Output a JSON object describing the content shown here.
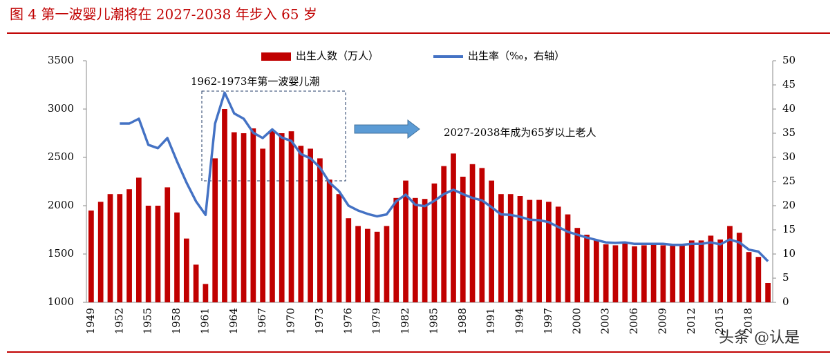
{
  "chart_data": {
    "type": "bar",
    "title": "图 4 第一波婴儿潮将在 2027-2038 年步入 65 岁",
    "annotations": [
      "1962-1973年第一波婴儿潮",
      "2027-2038年成为65岁以上老人"
    ],
    "watermark": "头条 @认是",
    "categories": [
      "1949",
      null,
      null,
      "1952",
      null,
      null,
      "1955",
      null,
      null,
      "1958",
      null,
      null,
      "1961",
      null,
      null,
      "1964",
      null,
      null,
      "1967",
      null,
      null,
      "1970",
      null,
      null,
      "1973",
      null,
      null,
      "1976",
      null,
      null,
      "1979",
      null,
      null,
      "1982",
      null,
      null,
      "1985",
      null,
      null,
      "1988",
      null,
      null,
      "1991",
      null,
      null,
      "1994",
      null,
      null,
      "1997",
      null,
      null,
      "2000",
      null,
      null,
      "2003",
      null,
      null,
      "2006",
      null,
      null,
      "2009",
      null,
      null,
      "2012",
      null,
      null,
      "2015",
      null,
      null,
      "2018",
      null,
      null
    ],
    "series": [
      {
        "name": "出生人数（万人）",
        "color": "#c00000",
        "values": [
          1950,
          2040,
          2120,
          2120,
          2170,
          2290,
          2000,
          2000,
          2190,
          1930,
          1660,
          1390,
          1190,
          2490,
          3000,
          2760,
          2750,
          2800,
          2590,
          2780,
          2750,
          2770,
          2620,
          2590,
          2490,
          2270,
          2120,
          1870,
          1790,
          1760,
          1730,
          1790,
          2080,
          2260,
          2080,
          2070,
          2230,
          2410,
          2540,
          2300,
          2430,
          2390,
          2260,
          2120,
          2120,
          2100,
          2060,
          2060,
          2040,
          1990,
          1910,
          1770,
          1700,
          1650,
          1600,
          1590,
          1620,
          1580,
          1590,
          1610,
          1590,
          1590,
          1600,
          1640,
          1640,
          1690,
          1650,
          1790,
          1720,
          1520,
          1470,
          1200
        ]
      },
      {
        "name": "出生率（‰，右轴）",
        "color": "#4472c4",
        "axis": "y2",
        "values": [
          null,
          null,
          null,
          37,
          37,
          38,
          32.6,
          31.9,
          34,
          29.2,
          24.8,
          20.9,
          18.1,
          37,
          43.4,
          39.1,
          38,
          35.1,
          34,
          35.8,
          34.1,
          33.4,
          30.7,
          29.8,
          27.9,
          24.8,
          23,
          20,
          19,
          18.3,
          17.8,
          18.2,
          20.9,
          22.3,
          20.2,
          19.9,
          21,
          22.4,
          23.3,
          22.4,
          21.6,
          21.1,
          19.7,
          18.2,
          18.1,
          17.7,
          17.1,
          17,
          16.6,
          15.6,
          14.6,
          14,
          13.4,
          12.9,
          12.4,
          12.3,
          12.4,
          12.1,
          12.1,
          12.1,
          12.1,
          11.9,
          11.9,
          12.1,
          12.1,
          12.4,
          12,
          13,
          12.4,
          10.9,
          10.5,
          8.5
        ]
      }
    ],
    "ylim": [
      1000,
      3500
    ],
    "yticks": [
      1000,
      1500,
      2000,
      2500,
      3000,
      3500
    ],
    "y2lim": [
      0,
      50
    ],
    "y2ticks": [
      0,
      5,
      10,
      15,
      20,
      25,
      30,
      35,
      40,
      45,
      50
    ]
  }
}
